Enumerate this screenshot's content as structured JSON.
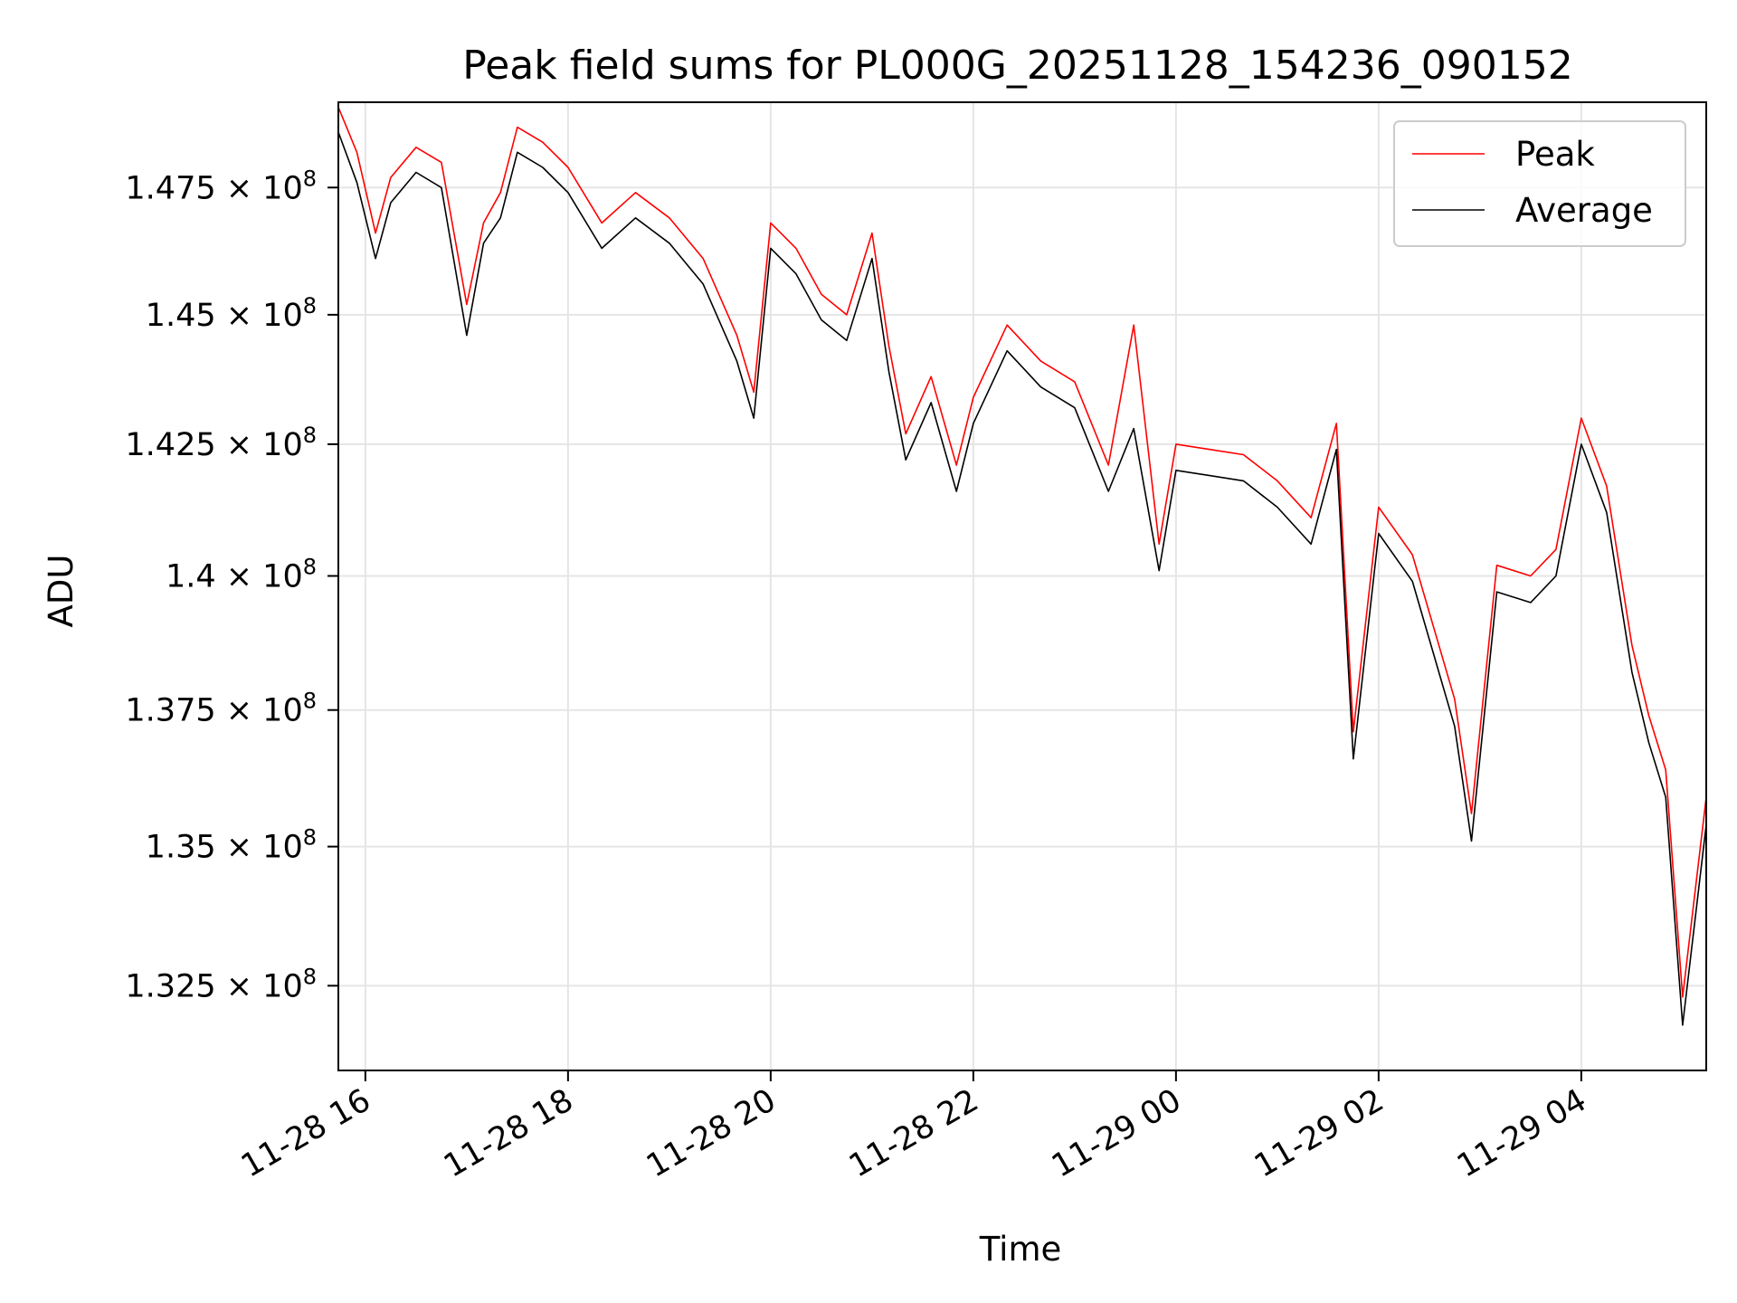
{
  "chart_data": {
    "type": "line",
    "title": "Peak field sums for PL000G_20251128_154236_090152",
    "xlabel": "Time",
    "ylabel": "ADU",
    "x_type": "datetime",
    "xlim": [
      "2025-11-28T15:44:00",
      "2025-11-29T05:14:00"
    ],
    "ylim": [
      131000000,
      149200000
    ],
    "yscale": "log",
    "grid": true,
    "legend_position": "upper right",
    "xticks": [
      {
        "value": "2025-11-28T16:00:00",
        "label": "11-28 16"
      },
      {
        "value": "2025-11-28T18:00:00",
        "label": "11-28 18"
      },
      {
        "value": "2025-11-28T20:00:00",
        "label": "11-28 20"
      },
      {
        "value": "2025-11-28T22:00:00",
        "label": "11-28 22"
      },
      {
        "value": "2025-11-29T00:00:00",
        "label": "11-29 00"
      },
      {
        "value": "2025-11-29T02:00:00",
        "label": "11-29 02"
      },
      {
        "value": "2025-11-29T04:00:00",
        "label": "11-29 04"
      }
    ],
    "yticks": [
      {
        "value": 132500000,
        "mantissa": "1.325"
      },
      {
        "value": 135000000,
        "mantissa": "1.35"
      },
      {
        "value": 137500000,
        "mantissa": "1.375"
      },
      {
        "value": 140000000,
        "mantissa": "1.4"
      },
      {
        "value": 142500000,
        "mantissa": "1.425"
      },
      {
        "value": 145000000,
        "mantissa": "1.45"
      },
      {
        "value": 147500000,
        "mantissa": "1.475"
      }
    ],
    "ytick_suffix": "× 10",
    "ytick_exponent": "8",
    "series": [
      {
        "name": "Peak",
        "color": "#ff0000",
        "x": [
          "2025-11-28T15:44:00",
          "2025-11-28T15:55:00",
          "2025-11-28T16:06:00",
          "2025-11-28T16:15:00",
          "2025-11-28T16:30:00",
          "2025-11-28T16:45:00",
          "2025-11-28T17:00:00",
          "2025-11-28T17:10:00",
          "2025-11-28T17:20:00",
          "2025-11-28T17:30:00",
          "2025-11-28T17:45:00",
          "2025-11-28T18:00:00",
          "2025-11-28T18:20:00",
          "2025-11-28T18:40:00",
          "2025-11-28T19:00:00",
          "2025-11-28T19:20:00",
          "2025-11-28T19:40:00",
          "2025-11-28T19:50:00",
          "2025-11-28T20:00:00",
          "2025-11-28T20:15:00",
          "2025-11-28T20:30:00",
          "2025-11-28T20:45:00",
          "2025-11-28T21:00:00",
          "2025-11-28T21:10:00",
          "2025-11-28T21:20:00",
          "2025-11-28T21:35:00",
          "2025-11-28T21:50:00",
          "2025-11-28T22:00:00",
          "2025-11-28T22:20:00",
          "2025-11-28T22:40:00",
          "2025-11-28T23:00:00",
          "2025-11-28T23:20:00",
          "2025-11-28T23:35:00",
          "2025-11-28T23:50:00",
          "2025-11-29T00:00:00",
          "2025-11-29T00:20:00",
          "2025-11-29T00:40:00",
          "2025-11-29T01:00:00",
          "2025-11-29T01:20:00",
          "2025-11-29T01:35:00",
          "2025-11-29T01:45:00",
          "2025-11-29T02:00:00",
          "2025-11-29T02:20:00",
          "2025-11-29T02:45:00",
          "2025-11-29T02:55:00",
          "2025-11-29T03:10:00",
          "2025-11-29T03:30:00",
          "2025-11-29T03:45:00",
          "2025-11-29T04:00:00",
          "2025-11-29T04:15:00",
          "2025-11-29T04:30:00",
          "2025-11-29T04:40:00",
          "2025-11-29T04:50:00",
          "2025-11-29T05:00:00",
          "2025-11-29T05:14:00"
        ],
        "y": [
          149100000,
          148200000,
          146600000,
          147700000,
          148300000,
          148000000,
          145200000,
          146800000,
          147400000,
          148700000,
          148400000,
          147900000,
          146800000,
          147400000,
          146900000,
          146100000,
          144600000,
          143500000,
          146800000,
          146300000,
          145400000,
          145000000,
          146600000,
          144400000,
          142700000,
          143800000,
          142100000,
          143400000,
          144800000,
          144100000,
          143700000,
          142100000,
          144800000,
          140600000,
          142500000,
          142400000,
          142300000,
          141800000,
          141100000,
          142900000,
          137100000,
          141300000,
          140400000,
          137700000,
          135600000,
          140200000,
          140000000,
          140500000,
          143000000,
          141700000,
          138700000,
          137400000,
          136400000,
          132300000,
          135900000
        ]
      },
      {
        "name": "Average",
        "color": "#000000",
        "x": [
          "2025-11-28T15:44:00",
          "2025-11-28T15:55:00",
          "2025-11-28T16:06:00",
          "2025-11-28T16:15:00",
          "2025-11-28T16:30:00",
          "2025-11-28T16:45:00",
          "2025-11-28T17:00:00",
          "2025-11-28T17:10:00",
          "2025-11-28T17:20:00",
          "2025-11-28T17:30:00",
          "2025-11-28T17:45:00",
          "2025-11-28T18:00:00",
          "2025-11-28T18:20:00",
          "2025-11-28T18:40:00",
          "2025-11-28T19:00:00",
          "2025-11-28T19:20:00",
          "2025-11-28T19:40:00",
          "2025-11-28T19:50:00",
          "2025-11-28T20:00:00",
          "2025-11-28T20:15:00",
          "2025-11-28T20:30:00",
          "2025-11-28T20:45:00",
          "2025-11-28T21:00:00",
          "2025-11-28T21:10:00",
          "2025-11-28T21:20:00",
          "2025-11-28T21:35:00",
          "2025-11-28T21:50:00",
          "2025-11-28T22:00:00",
          "2025-11-28T22:20:00",
          "2025-11-28T22:40:00",
          "2025-11-28T23:00:00",
          "2025-11-28T23:20:00",
          "2025-11-28T23:35:00",
          "2025-11-28T23:50:00",
          "2025-11-29T00:00:00",
          "2025-11-29T00:20:00",
          "2025-11-29T00:40:00",
          "2025-11-29T01:00:00",
          "2025-11-29T01:20:00",
          "2025-11-29T01:35:00",
          "2025-11-29T01:45:00",
          "2025-11-29T02:00:00",
          "2025-11-29T02:20:00",
          "2025-11-29T02:45:00",
          "2025-11-29T02:55:00",
          "2025-11-29T03:10:00",
          "2025-11-29T03:30:00",
          "2025-11-29T03:45:00",
          "2025-11-29T04:00:00",
          "2025-11-29T04:15:00",
          "2025-11-29T04:30:00",
          "2025-11-29T04:40:00",
          "2025-11-29T04:50:00",
          "2025-11-29T05:00:00",
          "2025-11-29T05:14:00"
        ],
        "y": [
          148600000,
          147600000,
          146100000,
          147200000,
          147800000,
          147500000,
          144600000,
          146400000,
          146900000,
          148200000,
          147900000,
          147400000,
          146300000,
          146900000,
          146400000,
          145600000,
          144100000,
          143000000,
          146300000,
          145800000,
          144900000,
          144500000,
          146100000,
          143900000,
          142200000,
          143300000,
          141600000,
          142900000,
          144300000,
          143600000,
          143200000,
          141600000,
          142800000,
          140100000,
          142000000,
          141900000,
          141800000,
          141300000,
          140600000,
          142400000,
          136600000,
          140800000,
          139900000,
          137200000,
          135100000,
          139700000,
          139500000,
          140000000,
          142500000,
          141200000,
          138200000,
          136900000,
          135900000,
          131800000,
          135400000
        ]
      }
    ]
  }
}
